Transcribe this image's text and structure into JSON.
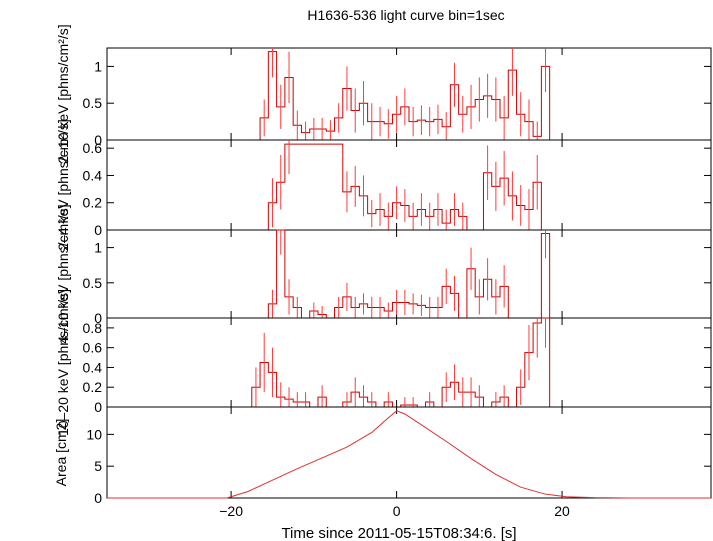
{
  "title": "H1636-536 light curve bin=1sec",
  "xlabel": "Time since 2011-05-15T08:34:6. [s]",
  "chart_data": [
    {
      "type": "line",
      "subtype": "step-with-errorbars",
      "ylabel": "2–10 keV [phns/cm²/s]",
      "xlim": [
        -35,
        38
      ],
      "ylim": [
        0,
        1.25
      ],
      "yticks": [
        0,
        0.5,
        1
      ],
      "ytick_labels": [
        "0",
        "0.5",
        "1"
      ],
      "x": [
        -16,
        -15,
        -14,
        -13,
        -12,
        -11,
        -10,
        -9,
        -8,
        -7,
        -6,
        -5,
        -4,
        -3,
        -2,
        -1,
        0,
        1,
        2,
        3,
        4,
        5,
        6,
        7,
        8,
        9,
        10,
        11,
        12,
        13,
        14,
        15,
        16,
        17,
        18
      ],
      "y": [
        0.3,
        1.2,
        0.45,
        0.85,
        0.2,
        0.1,
        0.15,
        0.15,
        0.12,
        0.3,
        0.7,
        0.4,
        0.5,
        0.25,
        0.25,
        0.22,
        0.35,
        0.45,
        0.25,
        0.27,
        0.25,
        0.28,
        0.18,
        0.75,
        0.35,
        0.45,
        0.55,
        0.6,
        0.55,
        0.3,
        0.95,
        0.35,
        0.25,
        0.05,
        1.0
      ],
      "err": [
        0.25,
        0.35,
        0.3,
        0.35,
        0.2,
        0.15,
        0.15,
        0.15,
        0.15,
        0.2,
        0.3,
        0.3,
        0.3,
        0.25,
        0.2,
        0.2,
        0.25,
        0.25,
        0.2,
        0.2,
        0.2,
        0.2,
        0.2,
        0.3,
        0.25,
        0.3,
        0.3,
        0.3,
        0.3,
        0.3,
        0.35,
        0.3,
        0.3,
        0.2,
        0.35
      ]
    },
    {
      "type": "line",
      "subtype": "step-with-errorbars",
      "ylabel": "2–4 keV [phns/cm²/s]",
      "xlim": [
        -35,
        38
      ],
      "ylim": [
        0,
        0.66
      ],
      "yticks": [
        0,
        0.2,
        0.4,
        0.6
      ],
      "ytick_labels": [
        "0",
        "0.2",
        "0.4",
        "0.6"
      ],
      "x": [
        -15,
        -14,
        -13,
        -6,
        -5,
        -4,
        -3,
        -2,
        -1,
        0,
        1,
        2,
        3,
        4,
        5,
        6,
        7,
        8,
        9,
        10,
        11,
        12,
        13,
        14,
        15,
        16,
        17
      ],
      "y": [
        0.2,
        0.35,
        0.63,
        0.28,
        0.32,
        0.25,
        0.12,
        0.15,
        0.1,
        0.2,
        0.18,
        0.1,
        0.15,
        0.1,
        0.15,
        0.05,
        0.15,
        0.1,
        0.0,
        0.0,
        0.42,
        0.32,
        0.38,
        0.25,
        0.18,
        0.15,
        0.35
      ],
      "err": [
        0.18,
        0.2,
        0.22,
        0.15,
        0.15,
        0.15,
        0.1,
        0.12,
        0.1,
        0.12,
        0.12,
        0.1,
        0.12,
        0.1,
        0.12,
        0.1,
        0.12,
        0.1,
        0.0,
        0.0,
        0.2,
        0.18,
        0.2,
        0.18,
        0.15,
        0.15,
        0.2
      ]
    },
    {
      "type": "line",
      "subtype": "step-with-errorbars",
      "ylabel": "4–10 keV [phns/cm²/s]",
      "xlim": [
        -35,
        38
      ],
      "ylim": [
        0,
        1.25
      ],
      "yticks": [
        0,
        0.5,
        1
      ],
      "ytick_labels": [
        "0",
        "0.5",
        "1"
      ],
      "x": [
        -15,
        -14,
        -13,
        -12,
        -11,
        -10,
        -9,
        -8,
        -7,
        -6,
        -5,
        -4,
        -3,
        -2,
        -1,
        0,
        1,
        2,
        3,
        4,
        5,
        6,
        7,
        8,
        9,
        10,
        11,
        12,
        13,
        14,
        15,
        16,
        17,
        18
      ],
      "y": [
        0.2,
        1.25,
        0.3,
        0.15,
        0.0,
        0.1,
        0.05,
        0.0,
        0.15,
        0.3,
        0.15,
        0.2,
        0.15,
        0.15,
        0.1,
        0.22,
        0.22,
        0.2,
        0.18,
        0.15,
        0.15,
        0.45,
        0.35,
        0.0,
        0.7,
        0.3,
        0.55,
        0.3,
        0.45,
        0.0,
        0.0,
        0.0,
        0.0,
        1.2
      ],
      "err": [
        0.2,
        0.35,
        0.25,
        0.15,
        0.0,
        0.12,
        0.12,
        0.0,
        0.15,
        0.2,
        0.15,
        0.15,
        0.15,
        0.15,
        0.12,
        0.18,
        0.18,
        0.15,
        0.15,
        0.15,
        0.15,
        0.25,
        0.25,
        0.0,
        0.3,
        0.25,
        0.3,
        0.25,
        0.3,
        0.0,
        0.0,
        0.0,
        0.0,
        0.35
      ]
    },
    {
      "type": "line",
      "subtype": "step-with-errorbars",
      "ylabel": "10–20 keV [phns/cm²/s]",
      "xlim": [
        -35,
        38
      ],
      "ylim": [
        0,
        0.9
      ],
      "yticks": [
        0,
        0.2,
        0.4,
        0.6,
        0.8
      ],
      "ytick_labels": [
        "0",
        "0.2",
        "0.4",
        "0.6",
        "0.8"
      ],
      "x": [
        -17,
        -16,
        -15,
        -14,
        -13,
        -12,
        -11,
        -10,
        -9,
        -8,
        -7,
        -6,
        -5,
        -4,
        -3,
        -2,
        -1,
        0,
        1,
        2,
        3,
        4,
        5,
        6,
        7,
        8,
        9,
        10,
        11,
        12,
        13,
        14,
        15,
        16,
        17,
        18
      ],
      "y": [
        0.2,
        0.45,
        0.35,
        0.1,
        0.08,
        0.05,
        0.05,
        0.0,
        0.1,
        0.0,
        0.0,
        0.05,
        0.15,
        0.1,
        0.05,
        0.0,
        0.05,
        0.0,
        0.02,
        0.02,
        0.0,
        0.05,
        0.0,
        0.2,
        0.25,
        0.15,
        0.15,
        0.1,
        0.0,
        0.05,
        0.1,
        0.0,
        0.2,
        0.55,
        0.85,
        0.9
      ],
      "err": [
        0.2,
        0.3,
        0.25,
        0.15,
        0.12,
        0.1,
        0.1,
        0.0,
        0.12,
        0.0,
        0.0,
        0.1,
        0.15,
        0.12,
        0.1,
        0.0,
        0.1,
        0.0,
        0.08,
        0.08,
        0.0,
        0.1,
        0.0,
        0.15,
        0.18,
        0.15,
        0.15,
        0.12,
        0.0,
        0.1,
        0.12,
        0.0,
        0.18,
        0.28,
        0.35,
        0.3
      ]
    },
    {
      "type": "line",
      "ylabel": "Area [cm2]",
      "xlim": [
        -35,
        38
      ],
      "ylim": [
        0,
        14.3
      ],
      "yticks": [
        0,
        5,
        10
      ],
      "ytick_labels": [
        "0",
        "5",
        "10"
      ],
      "xticks": [
        -20,
        0,
        20
      ],
      "xtick_labels": [
        "−20",
        "0",
        "20"
      ],
      "x": [
        -35,
        -20.5,
        -18,
        -15,
        -12,
        -9,
        -6,
        -3,
        -1,
        0,
        1,
        3,
        6,
        9,
        12,
        15,
        18,
        20.5,
        24,
        28,
        38
      ],
      "y": [
        0,
        0,
        1.0,
        2.8,
        4.6,
        6.3,
        8.0,
        10.3,
        12.6,
        13.7,
        13.2,
        11.5,
        8.9,
        6.2,
        3.7,
        1.7,
        0.6,
        0.2,
        0.05,
        0,
        0
      ]
    }
  ]
}
